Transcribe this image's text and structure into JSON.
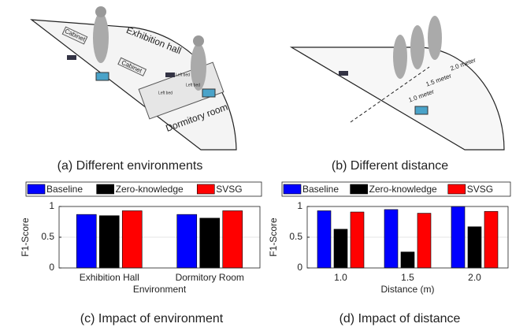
{
  "illustrations": {
    "a": {
      "caption": "(a) Different environments",
      "labels": [
        "Cabinet",
        "Exhibition hall",
        "Cabinet",
        "Left bed",
        "Left bed",
        "Left bed",
        "Dormitory room"
      ]
    },
    "b": {
      "caption": "(b) Different distance",
      "labels": [
        "2.0 meter",
        "1.5 meter",
        "1.0 meter"
      ]
    }
  },
  "chart_data": [
    {
      "type": "bar",
      "title": "(c) Impact of environment",
      "x_label": "Environment",
      "y_label": "F1-Score",
      "categories": [
        "Exhibition Hall",
        "Dormitory Room"
      ],
      "series": [
        {
          "name": "Baseline",
          "color": "#0000ff",
          "values": [
            0.87,
            0.87
          ]
        },
        {
          "name": "Zero-knowledge",
          "color": "#000000",
          "values": [
            0.85,
            0.81
          ]
        },
        {
          "name": "SVSG",
          "color": "#ff0000",
          "values": [
            0.93,
            0.93
          ]
        }
      ],
      "ylim": [
        0,
        1
      ],
      "yticks": [
        0,
        0.5,
        1
      ],
      "grid": true
    },
    {
      "type": "bar",
      "title": "(d) Impact of distance",
      "x_label": "Distance (m)",
      "y_label": "F1-Score",
      "categories": [
        "1.0",
        "1.5",
        "2.0"
      ],
      "series": [
        {
          "name": "Baseline",
          "color": "#0000ff",
          "values": [
            0.93,
            0.95,
            1.0
          ]
        },
        {
          "name": "Zero-knowledge",
          "color": "#000000",
          "values": [
            0.63,
            0.26,
            0.67
          ]
        },
        {
          "name": "SVSG",
          "color": "#ff0000",
          "values": [
            0.91,
            0.89,
            0.92
          ]
        }
      ],
      "ylim": [
        0,
        1
      ],
      "yticks": [
        0,
        0.5,
        1
      ],
      "grid": true
    }
  ]
}
